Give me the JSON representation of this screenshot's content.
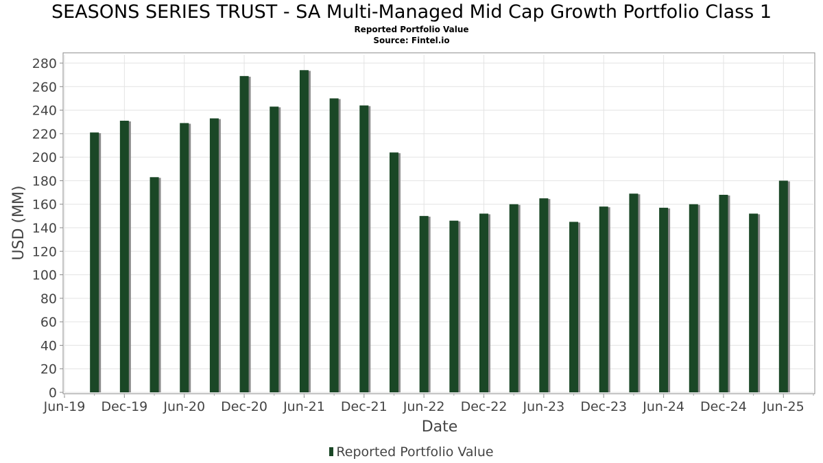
{
  "chart_data": {
    "type": "bar",
    "title": "SEASONS SERIES TRUST - SA Multi-Managed Mid Cap Growth Portfolio Class 1",
    "subtitle": "Reported Portfolio Value",
    "source": "Source: Fintel.io",
    "xlabel": "Date",
    "ylabel": "USD (MM)",
    "ylim": [
      0,
      287
    ],
    "yticks": [
      0,
      20,
      40,
      60,
      80,
      100,
      120,
      140,
      160,
      180,
      200,
      220,
      240,
      260,
      280
    ],
    "xlim": [
      "2019-06",
      "2025-09"
    ],
    "xtick_labels": [
      {
        "label": "Jun-19",
        "date": "2019-06"
      },
      {
        "label": "Dec-19",
        "date": "2019-12"
      },
      {
        "label": "Jun-20",
        "date": "2020-06"
      },
      {
        "label": "Dec-20",
        "date": "2020-12"
      },
      {
        "label": "Jun-21",
        "date": "2021-06"
      },
      {
        "label": "Dec-21",
        "date": "2021-12"
      },
      {
        "label": "Jun-22",
        "date": "2022-06"
      },
      {
        "label": "Dec-22",
        "date": "2022-12"
      },
      {
        "label": "Jun-23",
        "date": "2023-06"
      },
      {
        "label": "Dec-23",
        "date": "2023-12"
      },
      {
        "label": "Jun-24",
        "date": "2024-06"
      },
      {
        "label": "Dec-24",
        "date": "2024-12"
      },
      {
        "label": "Jun-25",
        "date": "2025-06"
      }
    ],
    "grid": true,
    "legend_position": "bottom",
    "bar_color": "#1a4726",
    "shadow_color": "#8a8a8a",
    "series": [
      {
        "name": "Reported Portfolio Value",
        "points": [
          {
            "date": "2019-09",
            "value": 221
          },
          {
            "date": "2019-12",
            "value": 231
          },
          {
            "date": "2020-03",
            "value": 183
          },
          {
            "date": "2020-06",
            "value": 229
          },
          {
            "date": "2020-09",
            "value": 233
          },
          {
            "date": "2020-12",
            "value": 269
          },
          {
            "date": "2021-03",
            "value": 243
          },
          {
            "date": "2021-06",
            "value": 274
          },
          {
            "date": "2021-09",
            "value": 250
          },
          {
            "date": "2021-12",
            "value": 244
          },
          {
            "date": "2022-03",
            "value": 204
          },
          {
            "date": "2022-06",
            "value": 150
          },
          {
            "date": "2022-09",
            "value": 146
          },
          {
            "date": "2022-12",
            "value": 152
          },
          {
            "date": "2023-03",
            "value": 160
          },
          {
            "date": "2023-06",
            "value": 165
          },
          {
            "date": "2023-09",
            "value": 145
          },
          {
            "date": "2023-12",
            "value": 158
          },
          {
            "date": "2024-03",
            "value": 169
          },
          {
            "date": "2024-06",
            "value": 157
          },
          {
            "date": "2024-09",
            "value": 160
          },
          {
            "date": "2024-12",
            "value": 168
          },
          {
            "date": "2025-03",
            "value": 152
          },
          {
            "date": "2025-06",
            "value": 180
          }
        ]
      }
    ]
  }
}
